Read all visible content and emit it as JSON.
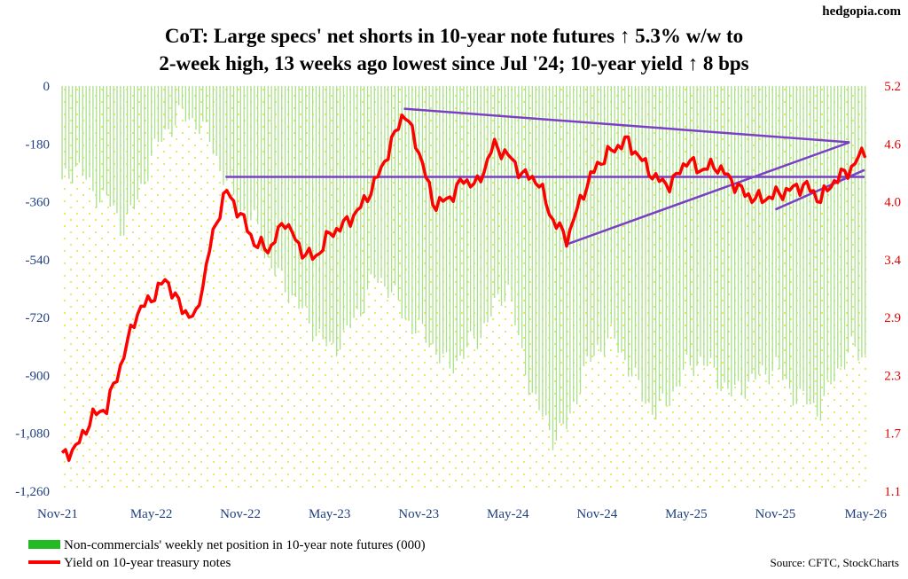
{
  "brand": "hedgopia.com",
  "source": "Source: CFTC, StockCharts",
  "colors": {
    "bars": "#a8e08a",
    "line": "#ff0000",
    "trend": "#7b3fc7",
    "dots": "#e8e030",
    "left_ticks": "#1f3f7f",
    "right_ticks": "#e00000"
  },
  "chart_data": {
    "type": "bar+line",
    "title": [
      "CoT: Large specs' net shorts in 10-year note futures ↑ 5.3% w/w to",
      "2-week high, 13 weeks ago lowest since Jul '24; 10-year yield ↑ 8 bps"
    ],
    "left_axis": {
      "range": [
        -1260,
        0
      ],
      "ticks": [
        "0",
        "-180",
        "-360",
        "-540",
        "-720",
        "-900",
        "-1,080",
        "-1,260"
      ]
    },
    "right_axis": {
      "range": [
        1.1,
        5.2
      ],
      "ticks": [
        "5.2",
        "4.6",
        "4.0",
        "3.4",
        "2.9",
        "2.3",
        "1.7",
        "1.1"
      ]
    },
    "x_axis": {
      "start": "2021-11",
      "end": "2026-05",
      "ticks": [
        "Nov-21",
        "May-22",
        "Nov-22",
        "May-23",
        "Nov-23",
        "May-24",
        "Nov-24",
        "May-25",
        "Nov-25",
        "May-26"
      ]
    },
    "bar_series": {
      "name": "Non-commercials' weekly net position in 10-year note futures (000)",
      "key_points": [
        [
          "2021-11",
          -310
        ],
        [
          "2021-12",
          -240
        ],
        [
          "2022-01",
          -330
        ],
        [
          "2022-02",
          -350
        ],
        [
          "2022-03",
          -440
        ],
        [
          "2022-04",
          -370
        ],
        [
          "2022-05",
          -220
        ],
        [
          "2022-06",
          -140
        ],
        [
          "2022-07",
          -90
        ],
        [
          "2022-08",
          -110
        ],
        [
          "2022-09",
          -170
        ],
        [
          "2022-10",
          -300
        ],
        [
          "2022-11",
          -380
        ],
        [
          "2022-12",
          -430
        ],
        [
          "2023-01",
          -560
        ],
        [
          "2023-02",
          -620
        ],
        [
          "2023-03",
          -690
        ],
        [
          "2023-04",
          -760
        ],
        [
          "2023-05",
          -820
        ],
        [
          "2023-06",
          -780
        ],
        [
          "2023-07",
          -700
        ],
        [
          "2023-08",
          -600
        ],
        [
          "2023-09",
          -620
        ],
        [
          "2023-10",
          -720
        ],
        [
          "2023-11",
          -760
        ],
        [
          "2023-12",
          -810
        ],
        [
          "2024-01",
          -880
        ],
        [
          "2024-02",
          -830
        ],
        [
          "2024-03",
          -780
        ],
        [
          "2024-04",
          -700
        ],
        [
          "2024-05",
          -620
        ],
        [
          "2024-06",
          -860
        ],
        [
          "2024-07",
          -1000
        ],
        [
          "2024-08",
          -1090
        ],
        [
          "2024-09",
          -1060
        ],
        [
          "2024-10",
          -900
        ],
        [
          "2024-11",
          -820
        ],
        [
          "2024-12",
          -780
        ],
        [
          "2025-01",
          -860
        ],
        [
          "2025-02",
          -960
        ],
        [
          "2025-03",
          -1020
        ],
        [
          "2025-04",
          -960
        ],
        [
          "2025-05",
          -880
        ],
        [
          "2025-06",
          -850
        ],
        [
          "2025-07",
          -900
        ],
        [
          "2025-08",
          -960
        ],
        [
          "2025-09",
          -930
        ],
        [
          "2025-10",
          -900
        ],
        [
          "2025-11",
          -870
        ],
        [
          "2025-12",
          -950
        ],
        [
          "2026-01",
          -980
        ],
        [
          "2026-02",
          -1010
        ],
        [
          "2026-03",
          -900
        ],
        [
          "2026-04",
          -820
        ],
        [
          "2026-05",
          -840
        ]
      ]
    },
    "line_series": {
      "name": "Yield on 10-year treasury notes",
      "key_points": [
        [
          "2021-11",
          1.45
        ],
        [
          "2021-12",
          1.55
        ],
        [
          "2022-01",
          1.85
        ],
        [
          "2022-02",
          1.95
        ],
        [
          "2022-03",
          2.4
        ],
        [
          "2022-04",
          2.9
        ],
        [
          "2022-05",
          3.05
        ],
        [
          "2022-06",
          3.25
        ],
        [
          "2022-07",
          2.95
        ],
        [
          "2022-08",
          2.85
        ],
        [
          "2022-09",
          3.6
        ],
        [
          "2022-10",
          4.15
        ],
        [
          "2022-11",
          3.9
        ],
        [
          "2022-12",
          3.6
        ],
        [
          "2023-01",
          3.55
        ],
        [
          "2023-02",
          3.85
        ],
        [
          "2023-03",
          3.55
        ],
        [
          "2023-04",
          3.45
        ],
        [
          "2023-05",
          3.7
        ],
        [
          "2023-06",
          3.8
        ],
        [
          "2023-07",
          3.95
        ],
        [
          "2023-08",
          4.2
        ],
        [
          "2023-09",
          4.55
        ],
        [
          "2023-10",
          4.95
        ],
        [
          "2023-11",
          4.55
        ],
        [
          "2023-12",
          4.0
        ],
        [
          "2024-01",
          4.05
        ],
        [
          "2024-02",
          4.25
        ],
        [
          "2024-03",
          4.2
        ],
        [
          "2024-04",
          4.6
        ],
        [
          "2024-05",
          4.5
        ],
        [
          "2024-06",
          4.3
        ],
        [
          "2024-07",
          4.25
        ],
        [
          "2024-08",
          3.85
        ],
        [
          "2024-09",
          3.65
        ],
        [
          "2024-10",
          4.1
        ],
        [
          "2024-11",
          4.4
        ],
        [
          "2024-12",
          4.55
        ],
        [
          "2025-01",
          4.65
        ],
        [
          "2025-02",
          4.45
        ],
        [
          "2025-03",
          4.25
        ],
        [
          "2025-04",
          4.2
        ],
        [
          "2025-05",
          4.45
        ],
        [
          "2025-06",
          4.35
        ],
        [
          "2025-07",
          4.4
        ],
        [
          "2025-08",
          4.25
        ],
        [
          "2025-09",
          4.1
        ],
        [
          "2025-10",
          4.05
        ],
        [
          "2025-11",
          4.1
        ],
        [
          "2025-12",
          4.15
        ],
        [
          "2026-01",
          4.2
        ],
        [
          "2026-02",
          4.05
        ],
        [
          "2026-03",
          4.25
        ],
        [
          "2026-04",
          4.35
        ],
        [
          "2026-05",
          4.55
        ]
      ]
    },
    "trend_lines": [
      {
        "from": [
          "2023-10",
          4.97
        ],
        "to": [
          "2026-04",
          4.63
        ]
      },
      {
        "from": [
          "2022-10",
          4.28
        ],
        "to": [
          "2026-05",
          4.28
        ]
      },
      {
        "from": [
          "2024-09",
          3.6
        ],
        "to": [
          "2026-04",
          4.63
        ]
      },
      {
        "from": [
          "2025-11",
          3.95
        ],
        "to": [
          "2026-05",
          4.35
        ]
      }
    ],
    "legend": {
      "placement": "bottom-left"
    },
    "grid": false
  }
}
